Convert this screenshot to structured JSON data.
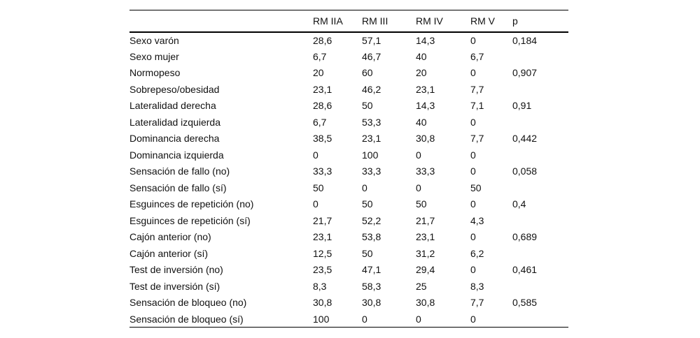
{
  "table": {
    "columns": [
      "",
      "RM IIA",
      "RM III",
      "RM IV",
      "RM V",
      "p"
    ],
    "rows": [
      {
        "label": "Sexo varón",
        "values": [
          "28,6",
          "57,1",
          "14,3",
          "0",
          "0,184"
        ]
      },
      {
        "label": "Sexo mujer",
        "values": [
          "6,7",
          "46,7",
          "40",
          "6,7",
          ""
        ]
      },
      {
        "label": "Normopeso",
        "values": [
          "20",
          "60",
          "20",
          "0",
          "0,907"
        ]
      },
      {
        "label": "Sobrepeso/obesidad",
        "values": [
          "23,1",
          "46,2",
          "23,1",
          "7,7",
          ""
        ]
      },
      {
        "label": "Lateralidad derecha",
        "values": [
          "28,6",
          "50",
          "14,3",
          "7,1",
          "0,91"
        ]
      },
      {
        "label": "Lateralidad izquierda",
        "values": [
          "6,7",
          "53,3",
          "40",
          "0",
          ""
        ]
      },
      {
        "label": "Dominancia derecha",
        "values": [
          "38,5",
          "23,1",
          "30,8",
          "7,7",
          "0,442"
        ]
      },
      {
        "label": "Dominancia izquierda",
        "values": [
          "0",
          "100",
          "0",
          "0",
          ""
        ]
      },
      {
        "label": "Sensación de fallo (no)",
        "values": [
          "33,3",
          "33,3",
          "33,3",
          "0",
          "0,058"
        ]
      },
      {
        "label": "Sensación de fallo (sí)",
        "values": [
          "50",
          "0",
          "0",
          "50",
          ""
        ]
      },
      {
        "label": "Esguinces de repetición (no)",
        "values": [
          "0",
          "50",
          "50",
          "0",
          "0,4"
        ]
      },
      {
        "label": "Esguinces de repetición (sí)",
        "values": [
          "21,7",
          "52,2",
          "21,7",
          "4,3",
          ""
        ]
      },
      {
        "label": "Cajón anterior (no)",
        "values": [
          "23,1",
          "53,8",
          "23,1",
          "0",
          "0,689"
        ]
      },
      {
        "label": "Cajón anterior (sí)",
        "values": [
          "12,5",
          "50",
          "31,2",
          "6,2",
          ""
        ]
      },
      {
        "label": "Test de inversión (no)",
        "values": [
          "23,5",
          "47,1",
          "29,4",
          "0",
          "0,461"
        ]
      },
      {
        "label": "Test de inversión (sí)",
        "values": [
          "8,3",
          "58,3",
          "25",
          "8,3",
          ""
        ]
      },
      {
        "label": "Sensación de bloqueo (no)",
        "values": [
          "30,8",
          "30,8",
          "30,8",
          "7,7",
          "0,585"
        ]
      },
      {
        "label": "Sensación de bloqueo (sí)",
        "values": [
          "100",
          "0",
          "0",
          "0",
          ""
        ]
      }
    ]
  }
}
